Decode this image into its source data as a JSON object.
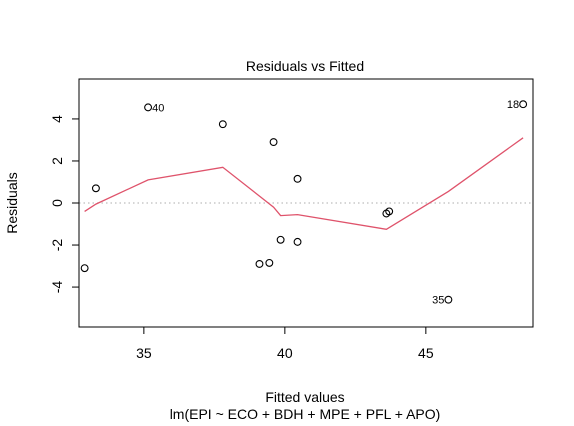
{
  "chart_data": {
    "type": "scatter",
    "title": "Residuals vs Fitted",
    "xlabel": "Fitted values",
    "subtitle": "lm(EPI ~ ECO + BDH + MPE + PFL + APO)",
    "ylabel": "Residuals",
    "xlim": [
      32.7,
      48.8
    ],
    "ylim": [
      -5.9,
      5.9
    ],
    "xticks": [
      35,
      40,
      45
    ],
    "yticks": [
      -4,
      -2,
      0,
      2,
      4
    ],
    "reference_line": {
      "y": 0,
      "style": "dotted",
      "color": "#bdbdbd"
    },
    "points": [
      {
        "x": 32.9,
        "y": -3.1
      },
      {
        "x": 33.3,
        "y": 0.7
      },
      {
        "x": 35.15,
        "y": 4.55,
        "label": "40"
      },
      {
        "x": 37.8,
        "y": 3.75
      },
      {
        "x": 39.1,
        "y": -2.9
      },
      {
        "x": 39.45,
        "y": -2.85
      },
      {
        "x": 39.6,
        "y": 2.9
      },
      {
        "x": 39.85,
        "y": -1.75
      },
      {
        "x": 40.45,
        "y": 1.15
      },
      {
        "x": 40.45,
        "y": -1.85
      },
      {
        "x": 43.6,
        "y": -0.5
      },
      {
        "x": 43.7,
        "y": -0.4
      },
      {
        "x": 45.8,
        "y": -4.6,
        "label": "35"
      },
      {
        "x": 48.45,
        "y": 4.7,
        "label": "18"
      }
    ],
    "smooth": {
      "color": "#DF536B",
      "x": [
        32.9,
        33.3,
        35.15,
        37.8,
        39.6,
        39.85,
        40.45,
        43.6,
        45.8,
        48.45
      ],
      "y": [
        -0.4,
        -0.05,
        1.1,
        1.7,
        -0.2,
        -0.6,
        -0.55,
        -1.25,
        0.55,
        3.1
      ]
    }
  }
}
